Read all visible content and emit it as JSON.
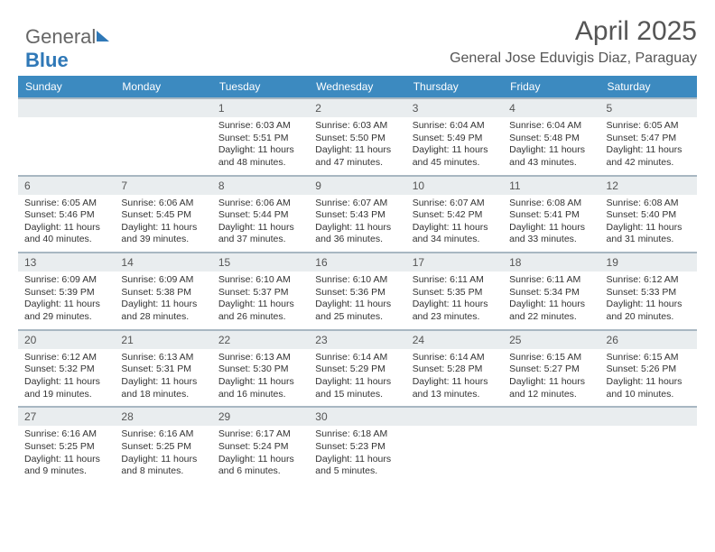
{
  "logo": {
    "part1": "General",
    "part2": "Blue"
  },
  "header": {
    "title": "April 2025",
    "subtitle": "General Jose Eduvigis Diaz, Paraguay"
  },
  "calendar": {
    "columns": [
      "Sunday",
      "Monday",
      "Tuesday",
      "Wednesday",
      "Thursday",
      "Friday",
      "Saturday"
    ],
    "header_bg": "#3c8ac0",
    "header_fg": "#ffffff",
    "daynum_bg": "#e9edef",
    "border_color": "#a8b7c2",
    "weeks": [
      [
        null,
        null,
        {
          "day": "1",
          "sunrise": "Sunrise: 6:03 AM",
          "sunset": "Sunset: 5:51 PM",
          "daylight": "Daylight: 11 hours and 48 minutes."
        },
        {
          "day": "2",
          "sunrise": "Sunrise: 6:03 AM",
          "sunset": "Sunset: 5:50 PM",
          "daylight": "Daylight: 11 hours and 47 minutes."
        },
        {
          "day": "3",
          "sunrise": "Sunrise: 6:04 AM",
          "sunset": "Sunset: 5:49 PM",
          "daylight": "Daylight: 11 hours and 45 minutes."
        },
        {
          "day": "4",
          "sunrise": "Sunrise: 6:04 AM",
          "sunset": "Sunset: 5:48 PM",
          "daylight": "Daylight: 11 hours and 43 minutes."
        },
        {
          "day": "5",
          "sunrise": "Sunrise: 6:05 AM",
          "sunset": "Sunset: 5:47 PM",
          "daylight": "Daylight: 11 hours and 42 minutes."
        }
      ],
      [
        {
          "day": "6",
          "sunrise": "Sunrise: 6:05 AM",
          "sunset": "Sunset: 5:46 PM",
          "daylight": "Daylight: 11 hours and 40 minutes."
        },
        {
          "day": "7",
          "sunrise": "Sunrise: 6:06 AM",
          "sunset": "Sunset: 5:45 PM",
          "daylight": "Daylight: 11 hours and 39 minutes."
        },
        {
          "day": "8",
          "sunrise": "Sunrise: 6:06 AM",
          "sunset": "Sunset: 5:44 PM",
          "daylight": "Daylight: 11 hours and 37 minutes."
        },
        {
          "day": "9",
          "sunrise": "Sunrise: 6:07 AM",
          "sunset": "Sunset: 5:43 PM",
          "daylight": "Daylight: 11 hours and 36 minutes."
        },
        {
          "day": "10",
          "sunrise": "Sunrise: 6:07 AM",
          "sunset": "Sunset: 5:42 PM",
          "daylight": "Daylight: 11 hours and 34 minutes."
        },
        {
          "day": "11",
          "sunrise": "Sunrise: 6:08 AM",
          "sunset": "Sunset: 5:41 PM",
          "daylight": "Daylight: 11 hours and 33 minutes."
        },
        {
          "day": "12",
          "sunrise": "Sunrise: 6:08 AM",
          "sunset": "Sunset: 5:40 PM",
          "daylight": "Daylight: 11 hours and 31 minutes."
        }
      ],
      [
        {
          "day": "13",
          "sunrise": "Sunrise: 6:09 AM",
          "sunset": "Sunset: 5:39 PM",
          "daylight": "Daylight: 11 hours and 29 minutes."
        },
        {
          "day": "14",
          "sunrise": "Sunrise: 6:09 AM",
          "sunset": "Sunset: 5:38 PM",
          "daylight": "Daylight: 11 hours and 28 minutes."
        },
        {
          "day": "15",
          "sunrise": "Sunrise: 6:10 AM",
          "sunset": "Sunset: 5:37 PM",
          "daylight": "Daylight: 11 hours and 26 minutes."
        },
        {
          "day": "16",
          "sunrise": "Sunrise: 6:10 AM",
          "sunset": "Sunset: 5:36 PM",
          "daylight": "Daylight: 11 hours and 25 minutes."
        },
        {
          "day": "17",
          "sunrise": "Sunrise: 6:11 AM",
          "sunset": "Sunset: 5:35 PM",
          "daylight": "Daylight: 11 hours and 23 minutes."
        },
        {
          "day": "18",
          "sunrise": "Sunrise: 6:11 AM",
          "sunset": "Sunset: 5:34 PM",
          "daylight": "Daylight: 11 hours and 22 minutes."
        },
        {
          "day": "19",
          "sunrise": "Sunrise: 6:12 AM",
          "sunset": "Sunset: 5:33 PM",
          "daylight": "Daylight: 11 hours and 20 minutes."
        }
      ],
      [
        {
          "day": "20",
          "sunrise": "Sunrise: 6:12 AM",
          "sunset": "Sunset: 5:32 PM",
          "daylight": "Daylight: 11 hours and 19 minutes."
        },
        {
          "day": "21",
          "sunrise": "Sunrise: 6:13 AM",
          "sunset": "Sunset: 5:31 PM",
          "daylight": "Daylight: 11 hours and 18 minutes."
        },
        {
          "day": "22",
          "sunrise": "Sunrise: 6:13 AM",
          "sunset": "Sunset: 5:30 PM",
          "daylight": "Daylight: 11 hours and 16 minutes."
        },
        {
          "day": "23",
          "sunrise": "Sunrise: 6:14 AM",
          "sunset": "Sunset: 5:29 PM",
          "daylight": "Daylight: 11 hours and 15 minutes."
        },
        {
          "day": "24",
          "sunrise": "Sunrise: 6:14 AM",
          "sunset": "Sunset: 5:28 PM",
          "daylight": "Daylight: 11 hours and 13 minutes."
        },
        {
          "day": "25",
          "sunrise": "Sunrise: 6:15 AM",
          "sunset": "Sunset: 5:27 PM",
          "daylight": "Daylight: 11 hours and 12 minutes."
        },
        {
          "day": "26",
          "sunrise": "Sunrise: 6:15 AM",
          "sunset": "Sunset: 5:26 PM",
          "daylight": "Daylight: 11 hours and 10 minutes."
        }
      ],
      [
        {
          "day": "27",
          "sunrise": "Sunrise: 6:16 AM",
          "sunset": "Sunset: 5:25 PM",
          "daylight": "Daylight: 11 hours and 9 minutes."
        },
        {
          "day": "28",
          "sunrise": "Sunrise: 6:16 AM",
          "sunset": "Sunset: 5:25 PM",
          "daylight": "Daylight: 11 hours and 8 minutes."
        },
        {
          "day": "29",
          "sunrise": "Sunrise: 6:17 AM",
          "sunset": "Sunset: 5:24 PM",
          "daylight": "Daylight: 11 hours and 6 minutes."
        },
        {
          "day": "30",
          "sunrise": "Sunrise: 6:18 AM",
          "sunset": "Sunset: 5:23 PM",
          "daylight": "Daylight: 11 hours and 5 minutes."
        },
        null,
        null,
        null
      ]
    ]
  }
}
